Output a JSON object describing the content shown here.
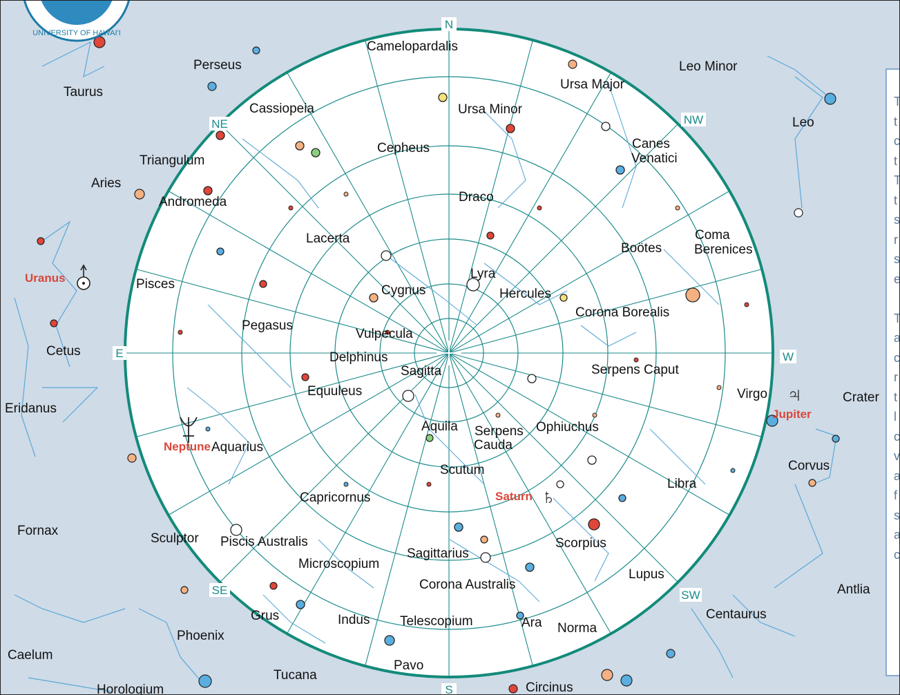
{
  "logo": {
    "text": "UNIVERSITY OF HAWAI'I"
  },
  "directions": [
    "N",
    "NE",
    "E",
    "SE",
    "S",
    "SW",
    "W",
    "NW"
  ],
  "constellations": {
    "camelopardalis": "Camelopardalis",
    "perseus": "Perseus",
    "taurus": "Taurus",
    "cassiopeia": "Cassiopeia",
    "ursa_minor": "Ursa Minor",
    "ursa_major": "Ursa Major",
    "leo_minor": "Leo Minor",
    "leo": "Leo",
    "triangulum": "Triangulum",
    "cepheus": "Cepheus",
    "canes": "Canes",
    "venatici": "Venatici",
    "aries": "Aries",
    "andromeda": "Andromeda",
    "draco": "Draco",
    "lacerta": "Lacerta",
    "coma": "Coma",
    "berenices": "Berenices",
    "bootes": "Boötes",
    "pisces": "Pisces",
    "cygnus": "Cygnus",
    "lyra": "Lyra",
    "hercules": "Hercules",
    "corona_borealis": "Corona Borealis",
    "pegasus": "Pegasus",
    "vulpecula": "Vulpecula",
    "cetus": "Cetus",
    "delphinus": "Delphinus",
    "sagitta": "Sagitta",
    "serpens_caput": "Serpens Caput",
    "equuleus": "Equuleus",
    "virgo": "Virgo",
    "eridanus": "Eridanus",
    "crater": "Crater",
    "aquila": "Aquila",
    "serpens": "Serpens",
    "cauda": "Cauda",
    "ophiuchus": "Ophiuchus",
    "aquarius": "Aquarius",
    "corvus": "Corvus",
    "scutum": "Scutum",
    "libra": "Libra",
    "capricornus": "Capricornus",
    "fornax": "Fornax",
    "sculptor": "Sculptor",
    "piscis_australis": "Piscis Australis",
    "scorpius": "Scorpius",
    "sagittarius": "Sagittarius",
    "microscopium": "Microscopium",
    "lupus": "Lupus",
    "corona_australis": "Corona Australis",
    "antlia": "Antlia",
    "grus": "Grus",
    "centaurus": "Centaurus",
    "indus": "Indus",
    "telescopium": "Telescopium",
    "ara": "Ara",
    "norma": "Norma",
    "phoenix": "Phoenix",
    "caelum": "Caelum",
    "pavo": "Pavo",
    "tucana": "Tucana",
    "horologium": "Horologium",
    "circinus": "Circinus"
  },
  "planets": {
    "uranus": "Uranus",
    "neptune": "Neptune",
    "jupiter": "Jupiter",
    "saturn": "Saturn"
  },
  "legend_fragments": [
    "T",
    "t",
    "c",
    "t",
    "T",
    "t",
    "s",
    "r",
    "s",
    "e",
    "",
    "T",
    "a",
    "c",
    "r",
    "t",
    "l",
    "c",
    "v",
    "a",
    "f",
    "s",
    "a",
    "c"
  ],
  "colors": {
    "background": "#cfdbe7",
    "horizon": "#138a7a",
    "grid": "#1b8a8a",
    "stick": "#5aa8d8",
    "planet_label": "#d9473a",
    "legend_border": "#8aa9d0",
    "legend_text": "#5a7a9a"
  }
}
